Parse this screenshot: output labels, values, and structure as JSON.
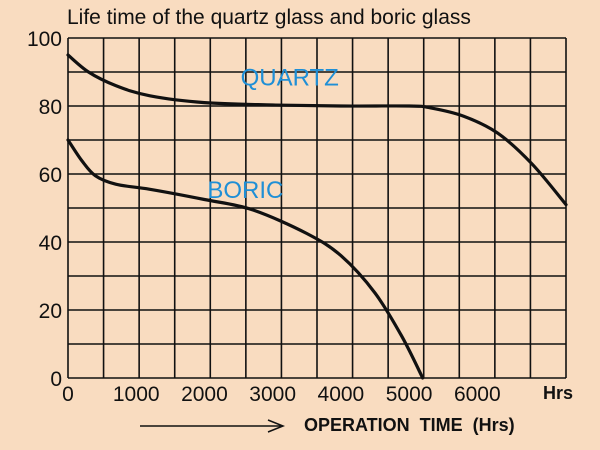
{
  "chart_data": {
    "type": "line",
    "title": "Life time of the quartz glass and boric glass",
    "xlabel": "OPERATION  TIME  (Hrs)",
    "x_unit": "Hrs",
    "ylabel": "",
    "xlim": [
      0,
      7300
    ],
    "ylim": [
      0,
      100
    ],
    "x_ticks": [
      0,
      1000,
      2000,
      3000,
      4000,
      5000,
      6000
    ],
    "y_ticks": [
      0,
      20,
      40,
      60,
      80,
      100
    ],
    "grid": true,
    "series": [
      {
        "name": "QUARTZ",
        "color": "#111111",
        "label_color": "#1f8fd6",
        "points": [
          [
            0,
            95
          ],
          [
            300,
            90
          ],
          [
            700,
            86
          ],
          [
            1200,
            83
          ],
          [
            2000,
            81
          ],
          [
            3000,
            80.3
          ],
          [
            4000,
            80
          ],
          [
            5000,
            80
          ],
          [
            5300,
            79.5
          ],
          [
            5800,
            77
          ],
          [
            6300,
            72
          ],
          [
            6800,
            63
          ],
          [
            7300,
            51
          ]
        ]
      },
      {
        "name": "BORIC",
        "color": "#111111",
        "label_color": "#1f8fd6",
        "points": [
          [
            0,
            70
          ],
          [
            200,
            64
          ],
          [
            400,
            59.5
          ],
          [
            700,
            57
          ],
          [
            1200,
            55.5
          ],
          [
            2000,
            52.5
          ],
          [
            2700,
            49.5
          ],
          [
            3500,
            42.5
          ],
          [
            4000,
            36
          ],
          [
            4500,
            25
          ],
          [
            4900,
            12
          ],
          [
            5200,
            0
          ]
        ]
      }
    ]
  }
}
